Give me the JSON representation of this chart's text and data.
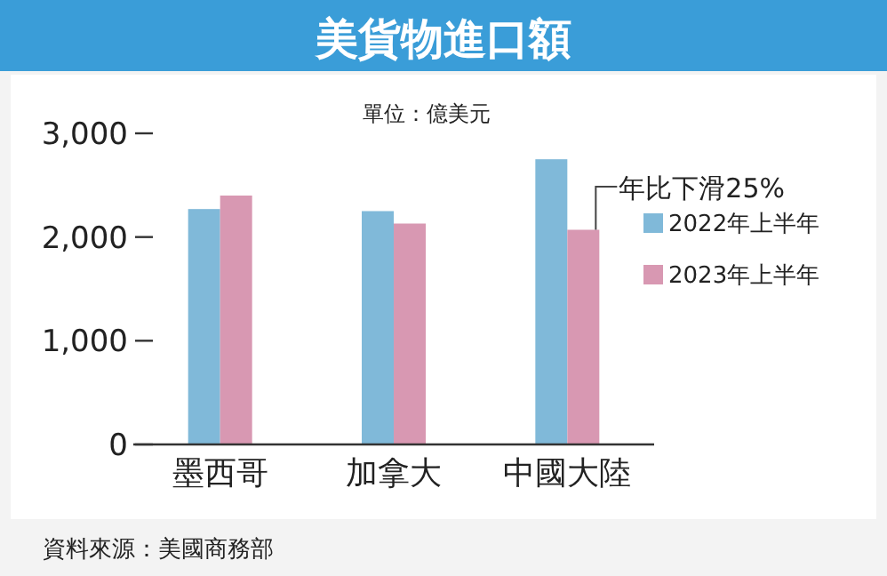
{
  "chart_data": {
    "type": "bar",
    "title": "美貨物進口額",
    "subtitle": "單位：億美元",
    "categories": [
      "墨西哥",
      "加拿大",
      "中國大陸"
    ],
    "series": [
      {
        "name": "2022年上半年",
        "color": "#80b9d9",
        "values": [
          2270,
          2250,
          2750
        ]
      },
      {
        "name": "2023年上半年",
        "color": "#d898b2",
        "values": [
          2400,
          2130,
          2070
        ]
      }
    ],
    "ylim": [
      0,
      3000
    ],
    "yticks": [
      {
        "value": 0,
        "label": "0"
      },
      {
        "value": 1000,
        "label": "1,000"
      },
      {
        "value": 2000,
        "label": "2,000"
      },
      {
        "value": 3000,
        "label": "3,000"
      }
    ],
    "legend": "right",
    "annotations": [
      {
        "text": "年比下滑25%",
        "x": "中國大陸",
        "y": 2070
      },
      "資料來源：美國商務部"
    ]
  }
}
